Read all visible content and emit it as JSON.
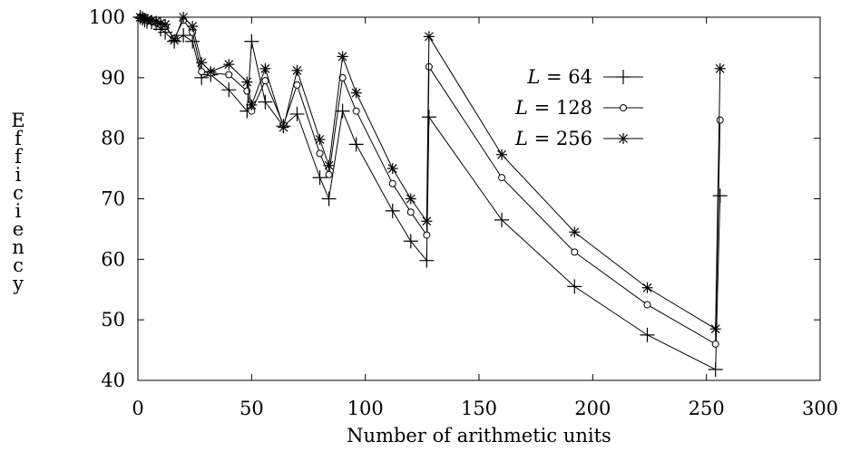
{
  "chart_data": {
    "type": "line",
    "title": "",
    "xlabel": "Number of arithmetic units",
    "ylabel": "Efficiency",
    "xlim": [
      0,
      300
    ],
    "ylim": [
      40,
      100
    ],
    "xticks": [
      0,
      50,
      100,
      150,
      200,
      250,
      300
    ],
    "yticks": [
      40,
      50,
      60,
      70,
      80,
      90,
      100
    ],
    "grid": false,
    "legend_position": "top-right",
    "series": [
      {
        "name": "L = 64",
        "legend_var": "L",
        "legend_value": "64",
        "marker": "plus",
        "points": [
          [
            1,
            100
          ],
          [
            2,
            99.8
          ],
          [
            3,
            99.5
          ],
          [
            4,
            99.3
          ],
          [
            6,
            99.2
          ],
          [
            8,
            99
          ],
          [
            10,
            98
          ],
          [
            12,
            97.5
          ],
          [
            16,
            96
          ],
          [
            20,
            97
          ],
          [
            24,
            96
          ],
          [
            28,
            90
          ],
          [
            32,
            90.5
          ],
          [
            40,
            88
          ],
          [
            48,
            84.5
          ],
          [
            50,
            96
          ],
          [
            56,
            86
          ],
          [
            64,
            82
          ],
          [
            70,
            84
          ],
          [
            80,
            73.5
          ],
          [
            84,
            70
          ],
          [
            90,
            84.5
          ],
          [
            96,
            79
          ],
          [
            112,
            68
          ],
          [
            120,
            63
          ],
          [
            127,
            59.8
          ],
          [
            128,
            83.5
          ],
          [
            160,
            66.5
          ],
          [
            192,
            55.5
          ],
          [
            224,
            47.5
          ],
          [
            254,
            41.8
          ],
          [
            256,
            70.5
          ]
        ]
      },
      {
        "name": "L = 128",
        "legend_var": "L",
        "legend_value": "128",
        "marker": "circle",
        "points": [
          [
            1,
            100
          ],
          [
            2,
            99.9
          ],
          [
            3,
            99.7
          ],
          [
            4,
            99.5
          ],
          [
            6,
            99.3
          ],
          [
            8,
            99.1
          ],
          [
            10,
            98.8
          ],
          [
            12,
            98.5
          ],
          [
            16,
            96.5
          ],
          [
            20,
            99.5
          ],
          [
            24,
            97.5
          ],
          [
            28,
            91
          ],
          [
            32,
            90.8
          ],
          [
            40,
            90.5
          ],
          [
            48,
            87.8
          ],
          [
            50,
            84.5
          ],
          [
            56,
            89.5
          ],
          [
            64,
            82.2
          ],
          [
            70,
            88.8
          ],
          [
            80,
            77.5
          ],
          [
            84,
            74
          ],
          [
            90,
            90
          ],
          [
            96,
            84.5
          ],
          [
            112,
            72.5
          ],
          [
            120,
            67.8
          ],
          [
            127,
            64
          ],
          [
            128,
            91.8
          ],
          [
            160,
            73.5
          ],
          [
            192,
            61.2
          ],
          [
            224,
            52.5
          ],
          [
            254,
            46
          ],
          [
            256,
            83
          ]
        ]
      },
      {
        "name": "L = 256",
        "legend_var": "L",
        "legend_value": "256",
        "marker": "star",
        "points": [
          [
            1,
            100
          ],
          [
            2,
            99.9
          ],
          [
            3,
            99.8
          ],
          [
            4,
            99.6
          ],
          [
            6,
            99.4
          ],
          [
            8,
            99.3
          ],
          [
            10,
            99
          ],
          [
            12,
            98.8
          ],
          [
            16,
            96.2
          ],
          [
            20,
            100
          ],
          [
            24,
            98.5
          ],
          [
            28,
            92.5
          ],
          [
            32,
            91
          ],
          [
            40,
            92.2
          ],
          [
            48,
            89.3
          ],
          [
            50,
            85.5
          ],
          [
            56,
            91.5
          ],
          [
            64,
            81.8
          ],
          [
            70,
            91.2
          ],
          [
            80,
            79.8
          ],
          [
            84,
            75.5
          ],
          [
            90,
            93.5
          ],
          [
            96,
            87.5
          ],
          [
            112,
            75
          ],
          [
            120,
            70
          ],
          [
            127,
            66.3
          ],
          [
            128,
            96.8
          ],
          [
            160,
            77.3
          ],
          [
            192,
            64.5
          ],
          [
            224,
            55.3
          ],
          [
            254,
            48.5
          ],
          [
            256,
            91.5
          ]
        ]
      }
    ]
  }
}
